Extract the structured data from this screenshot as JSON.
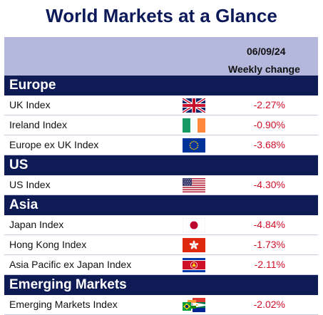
{
  "title": "World Markets at a Glance",
  "header": {
    "date": "06/09/24",
    "column": "Weekly change"
  },
  "sections": [
    {
      "name": "Europe",
      "rows": [
        {
          "name": "UK Index",
          "flag": "uk-flag-icon",
          "value": "-2.27%"
        },
        {
          "name": "Ireland Index",
          "flag": "ireland-flag-icon",
          "value": "-0.90%"
        },
        {
          "name": "Europe ex UK Index",
          "flag": "eu-flag-icon",
          "value": "-3.68%"
        }
      ]
    },
    {
      "name": "US",
      "rows": [
        {
          "name": "US Index",
          "flag": "us-flag-icon",
          "value": "-4.30%"
        }
      ]
    },
    {
      "name": "Asia",
      "rows": [
        {
          "name": "Japan Index",
          "flag": "japan-flag-icon",
          "value": "-4.84%"
        },
        {
          "name": "Hong Kong Index",
          "flag": "hong-kong-flag-icon",
          "value": "-1.73%"
        },
        {
          "name": "Asia Pacific ex Japan Index",
          "flag": "asean-flag-icon",
          "value": "-2.11%"
        }
      ]
    },
    {
      "name": "Emerging Markets",
      "rows": [
        {
          "name": "Emerging Markets Index",
          "flag": "emerging-markets-flags-icon",
          "value": "-2.02%"
        }
      ]
    }
  ],
  "colors": {
    "navy": "#0f1b55",
    "header_band": "#b3b8dc",
    "negative": "#d0102a"
  }
}
